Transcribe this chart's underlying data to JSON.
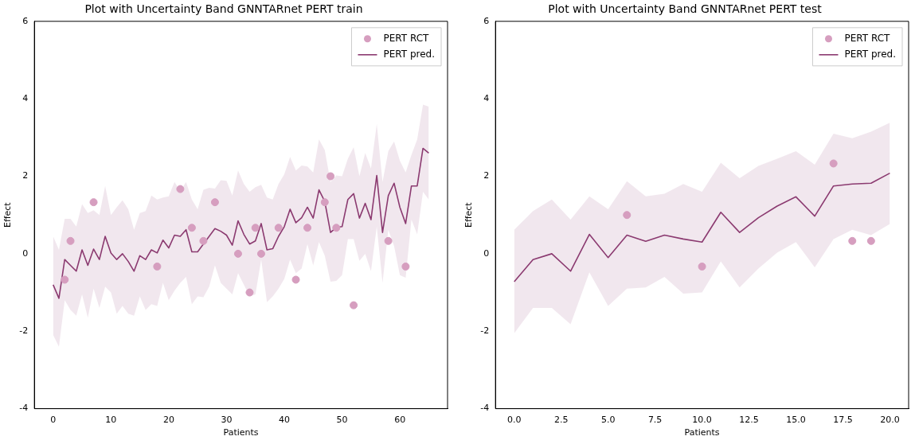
{
  "chart_data": [
    {
      "type": "line",
      "title": "Plot with Uncertainty Band GNNTARnet PERT train",
      "xlabel": "Patients",
      "ylabel": "Effect",
      "xlim": [
        -3.25,
        68.25
      ],
      "xticks": [
        0,
        10,
        20,
        30,
        40,
        50,
        60
      ],
      "ylim": [
        -4,
        6
      ],
      "yticks": [
        -4,
        -2,
        0,
        2,
        4,
        6
      ],
      "grid": false,
      "legend": "top right",
      "series": [
        {
          "name": "PERT RCT",
          "type": "scatter",
          "marker": "circle",
          "color": "#d69ebf",
          "x": [
            2,
            3,
            7,
            18,
            22,
            24,
            26,
            28,
            32,
            34,
            35,
            36,
            39,
            42,
            44,
            47,
            48,
            49,
            52,
            58,
            61
          ],
          "values": [
            -0.67,
            0.33,
            1.33,
            -0.33,
            1.67,
            0.67,
            0.33,
            1.33,
            0,
            -1,
            0.67,
            0,
            0.67,
            -0.67,
            0.67,
            1.33,
            2,
            0.67,
            -1.33,
            0.33,
            -0.33
          ]
        },
        {
          "name": "PERT pred.",
          "type": "line",
          "color": "#8b3a70",
          "x": [
            0,
            1,
            2,
            3,
            4,
            5,
            6,
            7,
            8,
            9,
            10,
            11,
            12,
            13,
            14,
            15,
            16,
            17,
            18,
            19,
            20,
            21,
            22,
            23,
            24,
            25,
            26,
            27,
            28,
            29,
            30,
            31,
            32,
            33,
            34,
            35,
            36,
            37,
            38,
            39,
            40,
            41,
            42,
            43,
            44,
            45,
            46,
            47,
            48,
            49,
            50,
            51,
            52,
            53,
            54,
            55,
            56,
            57,
            58,
            59,
            60,
            61,
            62,
            63,
            64,
            65
          ],
          "values": [
            -0.8,
            -1.15,
            -0.15,
            -0.3,
            -0.45,
            0.1,
            -0.3,
            0.12,
            -0.15,
            0.45,
            0.02,
            -0.15,
            0,
            -0.2,
            -0.45,
            -0.05,
            -0.15,
            0.1,
            0.02,
            0.35,
            0.15,
            0.48,
            0.45,
            0.62,
            0.05,
            0.05,
            0.25,
            0.45,
            0.65,
            0.58,
            0.48,
            0.22,
            0.85,
            0.5,
            0.25,
            0.33,
            0.78,
            0.1,
            0.13,
            0.45,
            0.7,
            1.15,
            0.8,
            0.93,
            1.2,
            0.92,
            1.65,
            1.35,
            0.55,
            0.68,
            0.7,
            1.4,
            1.55,
            0.92,
            1.3,
            0.88,
            2.02,
            0.55,
            1.5,
            1.82,
            1.2,
            0.78,
            1.75,
            1.75,
            2.72,
            2.6
          ],
          "upper": [
            0.45,
            0.1,
            0.9,
            0.9,
            0.7,
            1.28,
            1.05,
            1.12,
            1.0,
            1.75,
            1.0,
            1.2,
            1.38,
            1.15,
            0.62,
            1.05,
            1.1,
            1.5,
            1.4,
            1.45,
            1.48,
            1.85,
            1.62,
            1.85,
            1.4,
            1.15,
            1.65,
            1.7,
            1.68,
            1.9,
            1.88,
            1.5,
            2.15,
            1.8,
            1.6,
            1.72,
            1.78,
            1.45,
            1.4,
            1.8,
            2.05,
            2.5,
            2.15,
            2.28,
            2.25,
            2.1,
            2.95,
            2.68,
            1.85,
            2.02,
            2.0,
            2.45,
            2.75,
            2.0,
            2.6,
            2.2,
            3.35,
            1.85,
            2.65,
            2.9,
            2.4,
            2.1,
            2.55,
            2.95,
            3.85,
            3.8
          ],
          "lower": [
            -2.1,
            -2.4,
            -1.2,
            -1.45,
            -1.6,
            -1.05,
            -1.65,
            -0.9,
            -1.4,
            -0.85,
            -1.0,
            -1.55,
            -1.35,
            -1.55,
            -1.6,
            -1.1,
            -1.45,
            -1.3,
            -1.35,
            -0.75,
            -1.2,
            -0.95,
            -0.75,
            -0.6,
            -1.3,
            -1.1,
            -1.12,
            -0.85,
            -0.3,
            -0.75,
            -0.9,
            -1.05,
            -0.5,
            -0.8,
            -1.1,
            -1.05,
            -0.15,
            -1.25,
            -1.1,
            -0.9,
            -0.65,
            -0.15,
            -0.5,
            -0.38,
            0.25,
            -0.3,
            0.3,
            -0.05,
            -0.72,
            -0.7,
            -0.55,
            0.38,
            0.38,
            -0.18,
            0,
            -0.45,
            0.7,
            -0.75,
            0.62,
            0.2,
            -0.55,
            -0.62,
            0.88,
            0.5,
            1.6,
            1.4
          ]
        }
      ]
    },
    {
      "type": "line",
      "title": "Plot with Uncertainty Band GNNTARnet PERT test",
      "xlabel": "Patients",
      "ylabel": "Effect",
      "xlim": [
        -1,
        21
      ],
      "xticks": [
        {
          "value": 0,
          "label": "0.0"
        },
        2.5,
        {
          "value": 5,
          "label": "5.0"
        },
        7.5,
        {
          "value": 10,
          "label": "10.0"
        },
        12.5,
        {
          "value": 15,
          "label": "15.0"
        },
        17.5,
        {
          "value": 20,
          "label": "20.0"
        }
      ],
      "ylim": [
        -4,
        6
      ],
      "yticks": [
        -4,
        -2,
        0,
        2,
        4,
        6
      ],
      "grid": false,
      "legend": "top right",
      "series": [
        {
          "name": "PERT RCT",
          "type": "scatter",
          "marker": "circle",
          "color": "#d69ebf",
          "x": [
            6,
            10,
            17,
            18,
            19
          ],
          "values": [
            1,
            -0.33,
            2.33,
            0.33,
            0.33
          ]
        },
        {
          "name": "PERT pred.",
          "type": "line",
          "color": "#8b3a70",
          "x": [
            0,
            1,
            2,
            3,
            4,
            5,
            6,
            7,
            8,
            9,
            10,
            11,
            12,
            13,
            14,
            15,
            16,
            17,
            18,
            19,
            20
          ],
          "values": [
            -0.72,
            -0.15,
            0,
            -0.45,
            0.5,
            -0.1,
            0.48,
            0.32,
            0.48,
            0.38,
            0.3,
            1.07,
            0.55,
            0.93,
            1.23,
            1.47,
            0.97,
            1.75,
            1.8,
            1.82,
            2.08
          ],
          "upper": [
            0.62,
            1.1,
            1.4,
            0.88,
            1.48,
            1.15,
            1.87,
            1.48,
            1.55,
            1.8,
            1.6,
            2.35,
            1.95,
            2.27,
            2.45,
            2.65,
            2.3,
            3.1,
            2.98,
            3.15,
            3.38
          ],
          "lower": [
            -2.05,
            -1.4,
            -1.4,
            -1.82,
            -0.48,
            -1.35,
            -0.9,
            -0.87,
            -0.6,
            -1.03,
            -1.0,
            -0.2,
            -0.87,
            -0.38,
            0.03,
            0.3,
            -0.35,
            0.38,
            0.62,
            0.48,
            0.77
          ]
        }
      ]
    }
  ]
}
